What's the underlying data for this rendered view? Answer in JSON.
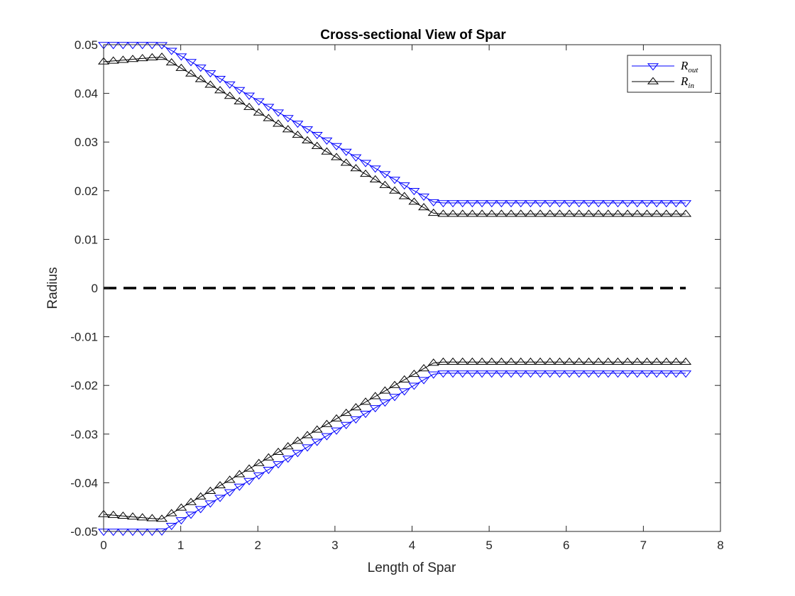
{
  "chart_data": {
    "type": "line",
    "title": "Cross-sectional View of Spar",
    "xlabel": "Length of Spar",
    "ylabel": "Radius",
    "xlim": [
      0,
      8
    ],
    "ylim": [
      -0.05,
      0.05
    ],
    "xticks": [
      0,
      1,
      2,
      3,
      4,
      5,
      6,
      7,
      8
    ],
    "xtick_labels": [
      "0",
      "1",
      "2",
      "3",
      "4",
      "5",
      "6",
      "7",
      "8"
    ],
    "yticks": [
      -0.05,
      -0.04,
      -0.03,
      -0.02,
      -0.01,
      0,
      0.01,
      0.02,
      0.03,
      0.04,
      0.05
    ],
    "ytick_labels": [
      "-0.05",
      "-0.04",
      "-0.03",
      "-0.02",
      "-0.01",
      "0",
      "0.01",
      "0.02",
      "0.03",
      "0.04",
      "0.05"
    ],
    "grid": false,
    "legend_position": "top-right",
    "x_range": [
      0,
      7.55
    ],
    "marker_count": 61,
    "series": [
      {
        "name": "R_out",
        "legend_main": "R",
        "legend_sub": "out",
        "color": "#0000ff",
        "marker": "triangle-down",
        "mirror": true,
        "profile": [
          [
            0,
            0.05
          ],
          [
            0.75,
            0.05
          ],
          [
            4.3,
            0.0175
          ],
          [
            7.55,
            0.0175
          ]
        ]
      },
      {
        "name": "R_in",
        "legend_main": "R",
        "legend_sub": "in",
        "color": "#000000",
        "marker": "triangle-up",
        "mirror": true,
        "profile": [
          [
            0,
            0.0465
          ],
          [
            0.75,
            0.0475
          ],
          [
            4.3,
            0.0152
          ],
          [
            7.55,
            0.0152
          ]
        ]
      }
    ],
    "centerline": {
      "y": 0,
      "x": [
        0,
        7.55
      ],
      "style": "dashed",
      "color": "#000000"
    }
  }
}
